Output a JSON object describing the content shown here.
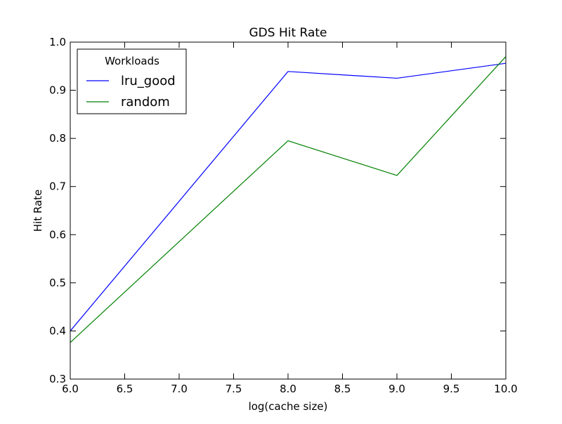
{
  "chart_data": {
    "type": "line",
    "title": "GDS Hit Rate",
    "xlabel": "log(cache size)",
    "ylabel": "Hit Rate",
    "xlim": [
      6.0,
      10.0
    ],
    "ylim": [
      0.3,
      1.0
    ],
    "x_ticks": [
      "6.0",
      "6.5",
      "7.0",
      "7.5",
      "8.0",
      "8.5",
      "9.0",
      "9.5",
      "10.0"
    ],
    "y_ticks": [
      "0.3",
      "0.4",
      "0.5",
      "0.6",
      "0.7",
      "0.8",
      "0.9",
      "1.0"
    ],
    "grid": false,
    "legend": {
      "title": "Workloads",
      "placement": "top-left"
    },
    "series": [
      {
        "name": "lru_good",
        "color": "#0000ff",
        "x": [
          6,
          8,
          9,
          10
        ],
        "y": [
          0.4,
          0.939,
          0.925,
          0.956
        ]
      },
      {
        "name": "random",
        "color": "#008000",
        "x": [
          6,
          8,
          9,
          10
        ],
        "y": [
          0.376,
          0.795,
          0.723,
          0.97
        ]
      }
    ]
  }
}
